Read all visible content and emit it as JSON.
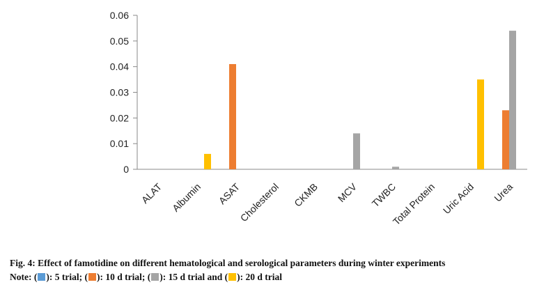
{
  "chart_data": {
    "type": "bar",
    "categories": [
      "ALAT",
      "Albumin",
      "ASAT",
      "Cholesterol",
      "CKMB",
      "MCV",
      "TWBC",
      "Total Protein",
      "Uric Acid",
      "Urea"
    ],
    "y_ticks": [
      "0",
      "0.01",
      "0.02",
      "0.03",
      "0.04",
      "0.05",
      "0.06"
    ],
    "ylim": [
      0,
      0.06
    ],
    "grid": false,
    "series": [
      {
        "name": "5 trial",
        "color": "#5b9bd5",
        "values": [
          0,
          0,
          0,
          0,
          0,
          0,
          0,
          0,
          0,
          0
        ]
      },
      {
        "name": "10 d trial",
        "color": "#ed7d31",
        "values": [
          0,
          0,
          0.041,
          0,
          0,
          0,
          0,
          0,
          0,
          0.023
        ]
      },
      {
        "name": "15 d trial",
        "color": "#a5a5a5",
        "values": [
          0,
          0,
          0,
          0,
          0,
          0.014,
          0.001,
          0,
          0,
          0.054
        ]
      },
      {
        "name": "20 d trial",
        "color": "#ffc000",
        "values": [
          0,
          0.006,
          0,
          0,
          0,
          0,
          0,
          0,
          0.035,
          0
        ]
      }
    ]
  },
  "caption": {
    "line1": "Fig. 4: Effect of famotidine on different hematological and serological parameters during winter experiments",
    "note_prefix": "Note: (",
    "seg1": "): 5 trial; (",
    "seg2": "): 10 d trial; (",
    "seg3": "): 15 d trial and (",
    "seg4": "): 20 d trial"
  }
}
